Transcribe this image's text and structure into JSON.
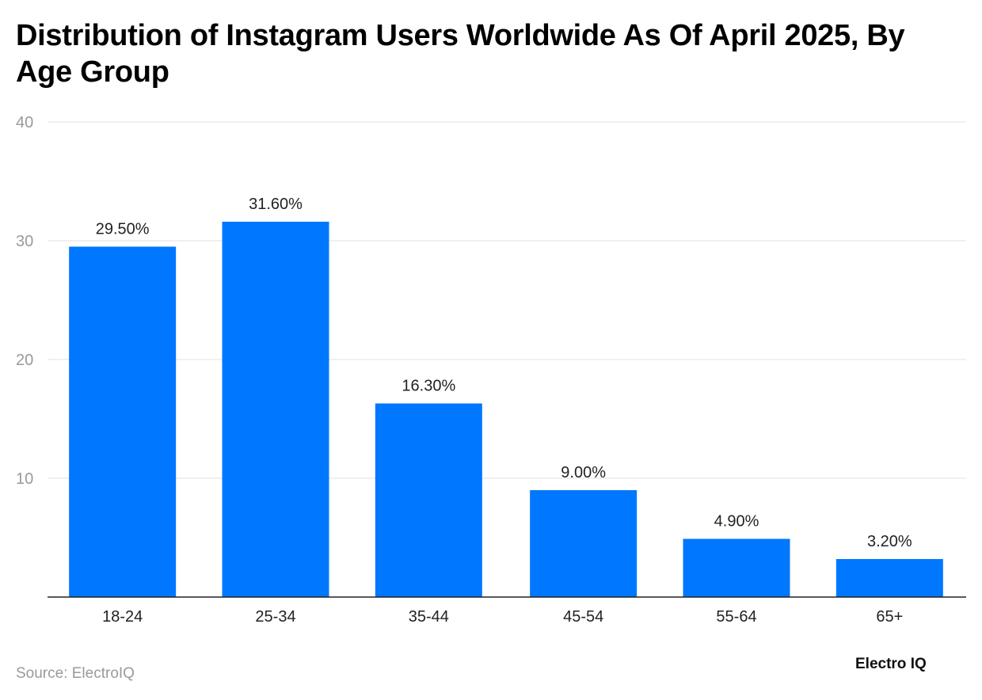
{
  "chart_data": {
    "type": "bar",
    "title": "Distribution of Instagram Users Worldwide As Of April 2025, By Age Group",
    "categories": [
      "18-24",
      "25-34",
      "35-44",
      "45-54",
      "55-64",
      "65+"
    ],
    "values": [
      29.5,
      31.6,
      16.3,
      9.0,
      4.9,
      3.2
    ],
    "data_labels": [
      "29.50%",
      "31.60%",
      "16.30%",
      "9.00%",
      "4.90%",
      "3.20%"
    ],
    "xlabel": "",
    "ylabel": "",
    "ylim": [
      0,
      40
    ],
    "yticks": [
      10,
      20,
      30,
      40
    ],
    "grid": true,
    "bar_color": "#0077ff"
  },
  "source": "Source: ElectroIQ",
  "logo": "Electro IQ"
}
